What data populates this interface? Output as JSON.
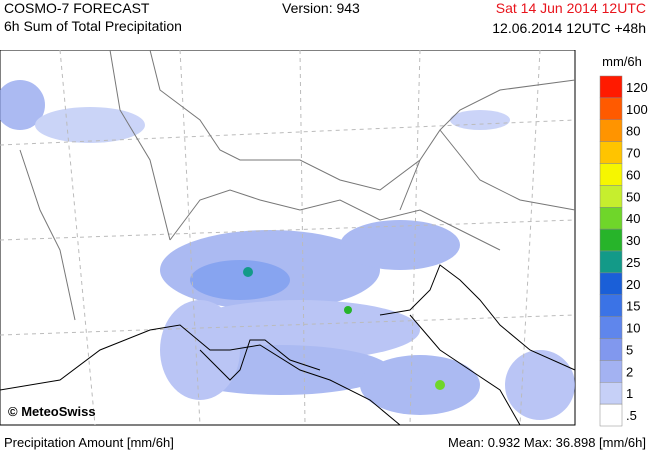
{
  "header": {
    "title": "COSMO-7 FORECAST",
    "subtitle": "6h Sum of Total Precipitation",
    "version": "Version: 943",
    "valid_time": "Sat 14 Jun 2014 12UTC",
    "run_time": "12.06.2014 12UTC +48h"
  },
  "map": {
    "copyright": "© MeteoSwiss"
  },
  "legend": {
    "unit": "mm/6h",
    "items": [
      {
        "label": "120",
        "color": "#ff1a00"
      },
      {
        "label": "100",
        "color": "#ff5a00"
      },
      {
        "label": "80",
        "color": "#ff9400"
      },
      {
        "label": "70",
        "color": "#ffc400"
      },
      {
        "label": "60",
        "color": "#f6f600"
      },
      {
        "label": "50",
        "color": "#c6ee2e"
      },
      {
        "label": "40",
        "color": "#6fd62a"
      },
      {
        "label": "30",
        "color": "#27b42a"
      },
      {
        "label": "25",
        "color": "#139a88"
      },
      {
        "label": "20",
        "color": "#1a5fd8"
      },
      {
        "label": "15",
        "color": "#3b73e6"
      },
      {
        "label": "10",
        "color": "#5f86ec"
      },
      {
        "label": "5",
        "color": "#8198ee"
      },
      {
        "label": "2",
        "color": "#a3b2f2"
      },
      {
        "label": "1",
        "color": "#c6d0f7"
      },
      {
        "label": ".5",
        "color": "#ffffff"
      }
    ]
  },
  "footer": {
    "left": "Precipitation Amount [mm/6h]",
    "right": "Mean:  0.932 Max:  36.898 [mm/6h]"
  }
}
